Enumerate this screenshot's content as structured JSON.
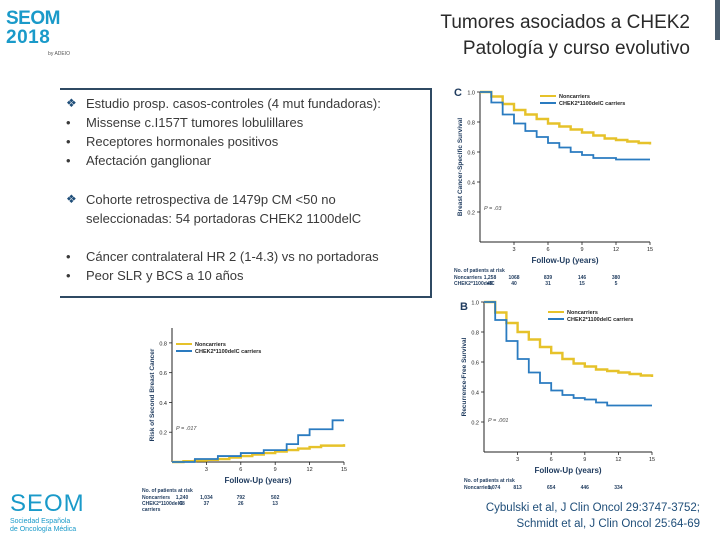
{
  "logo": {
    "name": "SEOM",
    "year": "2018",
    "tagline": "by ADEIO"
  },
  "title": {
    "line1": "Tumores asociados a CHEK2",
    "line2": "Patología y curso evolutivo"
  },
  "bullets_group1": [
    {
      "mark": "diamond",
      "text": "Estudio prosp. casos-controles (4 mut fundadoras):"
    },
    {
      "mark": "dot",
      "text": "Missense c.I157T tumores lobulillares"
    },
    {
      "mark": "dot",
      "text": "Receptores hormonales positivos"
    },
    {
      "mark": "dot",
      "text": "Afectación ganglionar"
    }
  ],
  "bullets_group2": [
    {
      "mark": "diamond",
      "text": "Cohorte retrospectiva de 1479p CM <50 no",
      "text2": "seleccionadas: 54 portadoras CHEK2 1100delC"
    }
  ],
  "bullets_group3": [
    {
      "mark": "dot",
      "text": "Cáncer contralateral HR 2 (1-4.3) vs no portadoras"
    },
    {
      "mark": "dot",
      "text": "Peor SLR y BCS a 10 años"
    }
  ],
  "reference": {
    "line1": "Cybulski et al, J Clin Oncol 29:3747-3752;",
    "line2": "Schmidt et al, J Clin Oncol 25:64-69"
  },
  "seom_bottom": {
    "name": "SEOM",
    "sub1": "Sociedad Española",
    "sub2": "de Oncología Médica"
  },
  "colors": {
    "noncarriers": "#e6c22a",
    "carriers": "#2a7bc0",
    "accent": "#1a9ac9",
    "border": "#2f4a63"
  },
  "chart_data": [
    {
      "id": "C",
      "type": "line",
      "panel_label": "C",
      "ylabel": "Breast Cancer-Specific Survival",
      "xlabel": "Follow-Up (years)",
      "yticks": [
        "1.0",
        "0.8",
        "0.6",
        "0.4",
        "0.2"
      ],
      "xticks": [
        "3",
        "6",
        "9",
        "12",
        "15"
      ],
      "xlim": [
        0,
        15
      ],
      "ylim": [
        0,
        1.0
      ],
      "p_value": "P = .03",
      "series": [
        {
          "name": "Noncarriers",
          "x": [
            0,
            1,
            2,
            3,
            4,
            5,
            6,
            7,
            8,
            9,
            10,
            11,
            12,
            13,
            14,
            15
          ],
          "y": [
            1.0,
            0.97,
            0.92,
            0.88,
            0.85,
            0.82,
            0.79,
            0.77,
            0.75,
            0.73,
            0.71,
            0.69,
            0.68,
            0.67,
            0.66,
            0.65
          ]
        },
        {
          "name": "CHEK2*1100delC carriers",
          "x": [
            0,
            1,
            2,
            3,
            4,
            5,
            6,
            7,
            8,
            9,
            10,
            11,
            12,
            13,
            14,
            15
          ],
          "y": [
            1.0,
            0.93,
            0.85,
            0.79,
            0.74,
            0.7,
            0.66,
            0.63,
            0.6,
            0.58,
            0.56,
            0.56,
            0.55,
            0.55,
            0.55,
            0.55
          ]
        }
      ],
      "risk_table": {
        "header": "No. of patients at risk",
        "rows": [
          {
            "label": "Noncarriers",
            "values": [
              "1,258",
              "1068",
              "839",
              "146",
              "380"
            ]
          },
          {
            "label": "CHEK2*1100delC",
            "values": [
              "49",
              "40",
              "31",
              "15",
              "5"
            ]
          }
        ]
      }
    },
    {
      "id": "B",
      "type": "line",
      "panel_label": "B",
      "ylabel": "Recurrence-Free Survival",
      "xlabel": "Follow-Up (years)",
      "yticks": [
        "1.0",
        "0.8",
        "0.6",
        "0.4",
        "0.2"
      ],
      "xticks": [
        "3",
        "6",
        "9",
        "12",
        "15"
      ],
      "xlim": [
        0,
        15
      ],
      "ylim": [
        0,
        1.0
      ],
      "p_value": "P = .001",
      "series": [
        {
          "name": "Noncarriers",
          "x": [
            0,
            1,
            2,
            3,
            4,
            5,
            6,
            7,
            8,
            9,
            10,
            11,
            12,
            13,
            14,
            15
          ],
          "y": [
            1.0,
            0.93,
            0.86,
            0.8,
            0.75,
            0.7,
            0.66,
            0.62,
            0.59,
            0.57,
            0.55,
            0.54,
            0.53,
            0.52,
            0.51,
            0.5
          ]
        },
        {
          "name": "CHEK2*1100delC carriers",
          "x": [
            0,
            1,
            2,
            3,
            4,
            5,
            6,
            7,
            8,
            9,
            10,
            11,
            12,
            13,
            14,
            15
          ],
          "y": [
            1.0,
            0.88,
            0.74,
            0.62,
            0.53,
            0.46,
            0.41,
            0.38,
            0.36,
            0.35,
            0.33,
            0.31,
            0.31,
            0.31,
            0.31,
            0.31
          ]
        }
      ],
      "risk_table": {
        "header": "No. of patients at risk",
        "rows": [
          {
            "label": "Noncarriers",
            "values": [
              "1,074",
              "813",
              "654",
              "446",
              "334"
            ]
          }
        ]
      }
    },
    {
      "id": "A",
      "type": "line",
      "ylabel": "Risk of Second Breast Cancer",
      "xlabel": "Follow-Up (years)",
      "yticks": [
        "0.8",
        "0.6",
        "0.4",
        "0.2"
      ],
      "xticks": [
        "3",
        "6",
        "9",
        "12",
        "15"
      ],
      "xlim": [
        0,
        15
      ],
      "ylim": [
        0,
        0.9
      ],
      "p_value": "P = .017",
      "series": [
        {
          "name": "Noncarriers",
          "x": [
            0,
            1,
            2,
            3,
            4,
            5,
            6,
            7,
            8,
            9,
            10,
            11,
            12,
            13,
            14,
            15
          ],
          "y": [
            0.0,
            0.005,
            0.01,
            0.015,
            0.02,
            0.03,
            0.04,
            0.05,
            0.06,
            0.07,
            0.08,
            0.09,
            0.1,
            0.11,
            0.11,
            0.12
          ]
        },
        {
          "name": "CHEK2*1100delC carriers",
          "x": [
            0,
            1,
            2,
            3,
            4,
            5,
            6,
            7,
            8,
            9,
            10,
            11,
            12,
            13,
            14,
            15
          ],
          "y": [
            0.0,
            0.0,
            0.02,
            0.02,
            0.04,
            0.04,
            0.06,
            0.06,
            0.08,
            0.08,
            0.12,
            0.18,
            0.22,
            0.22,
            0.28,
            0.28
          ]
        }
      ],
      "risk_table": {
        "header": "No. of patients at risk",
        "rows": [
          {
            "label": "Noncarriers",
            "values": [
              "1,240",
              "1,034",
              "792",
              "502"
            ]
          },
          {
            "label": "CHEK2*1100delC",
            "label2": "carriers",
            "values": [
              "48",
              "37",
              "26",
              "13"
            ]
          }
        ]
      }
    }
  ]
}
